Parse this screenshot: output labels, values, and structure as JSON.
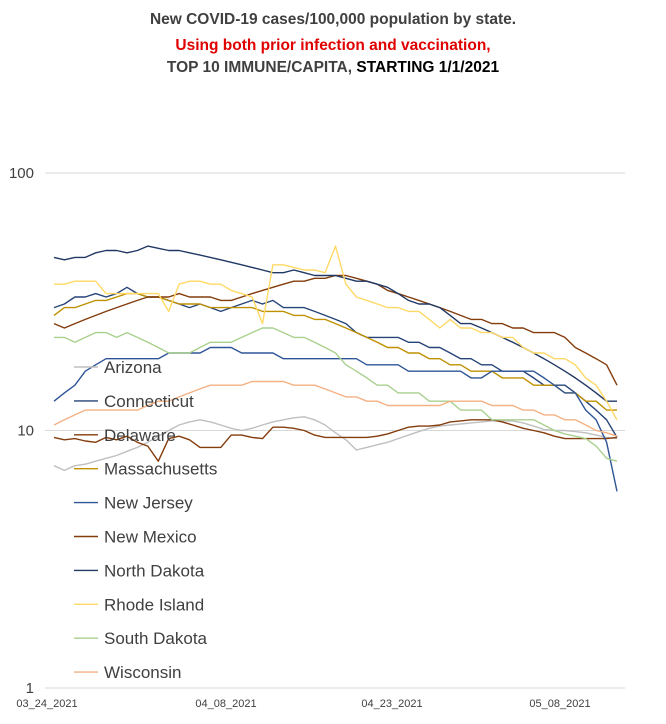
{
  "title": {
    "line1": "New COVID-19 cases/100,000 population by state.",
    "line2": "Using both prior infection and vaccination,",
    "line3_a": "TOP 10 IMMUNE/CAPITA, ",
    "line3_b": "STARTING 1/1/2021"
  },
  "chart_data": {
    "type": "line",
    "y_scale": "log",
    "ylim": [
      1,
      100
    ],
    "y_ticks": [
      "1",
      "10",
      "100"
    ],
    "x_tick_labels": [
      "03_24_2021",
      "04_08_2021",
      "04_23_2021",
      "05_08_2021"
    ],
    "x_range": [
      "03_24_2021",
      "05_20_2021"
    ],
    "grid": "horizontal",
    "legend_position": "left-inside",
    "series": [
      {
        "name": "Arizona",
        "color": "#bfbfbf",
        "values": [
          7.3,
          7.0,
          7.3,
          7.4,
          7.6,
          7.8,
          8.0,
          8.3,
          8.6,
          9.0,
          9.5,
          10.0,
          10.5,
          10.8,
          11.0,
          10.8,
          10.5,
          10.2,
          10.0,
          10.2,
          10.5,
          10.8,
          11.0,
          11.2,
          11.3,
          11.0,
          10.5,
          9.8,
          9.2,
          8.4,
          8.6,
          8.8,
          9.0,
          9.3,
          9.6,
          9.9,
          10.2,
          10.4,
          10.5,
          10.6,
          10.7,
          10.8,
          10.9,
          10.9,
          10.9,
          10.7,
          10.4,
          10.1,
          10.0,
          10.0,
          9.9,
          9.8,
          9.6,
          9.4,
          9.3
        ]
      },
      {
        "name": "Connecticut",
        "color": "#264478",
        "values": [
          30,
          31,
          33,
          33,
          34,
          33,
          34,
          36,
          34,
          33,
          33,
          32,
          31,
          30,
          31,
          30,
          29,
          30,
          31,
          32,
          31,
          32,
          30,
          30,
          30,
          29,
          28,
          27,
          26,
          24,
          23,
          23,
          23,
          23,
          22,
          22,
          21,
          21,
          20,
          19,
          19,
          18,
          18,
          17,
          17,
          17,
          16,
          15,
          15,
          15,
          14,
          13,
          12,
          11,
          9.4
        ]
      },
      {
        "name": "Delaware",
        "color": "#843c0c",
        "values": [
          9.4,
          9.2,
          9.3,
          9.1,
          9.0,
          9.4,
          9.2,
          9.5,
          9.0,
          8.7,
          7.6,
          9.3,
          9.5,
          9.2,
          8.6,
          8.6,
          8.6,
          9.6,
          9.6,
          9.4,
          9.3,
          10.3,
          10.3,
          10.2,
          10.0,
          9.6,
          9.4,
          9.4,
          9.4,
          9.4,
          9.4,
          9.5,
          9.7,
          10.0,
          10.3,
          10.4,
          10.4,
          10.5,
          10.8,
          10.9,
          11.0,
          11.0,
          11.0,
          10.8,
          10.5,
          10.2,
          10.0,
          9.8,
          9.5,
          9.3,
          9.3,
          9.3,
          9.3,
          9.3,
          9.4
        ]
      },
      {
        "name": "Massachusetts",
        "color": "#bf9000",
        "values": [
          28,
          30,
          30,
          31,
          32,
          32,
          33,
          34,
          34,
          33,
          33,
          32,
          31,
          31,
          31,
          30,
          30,
          30,
          30,
          30,
          29,
          29,
          29,
          28,
          28,
          27,
          27,
          26,
          25,
          24,
          23,
          22,
          21,
          21,
          20,
          20,
          19,
          19,
          18,
          18,
          17,
          17,
          17,
          16,
          16,
          16,
          15,
          15,
          15,
          14,
          14,
          13,
          13,
          12,
          12
        ]
      },
      {
        "name": "New Jersey",
        "color": "#2e5597",
        "values": [
          13,
          14,
          15,
          17,
          18,
          19,
          19,
          19,
          19,
          19,
          19,
          20,
          20,
          20,
          20,
          21,
          21,
          21,
          20,
          20,
          20,
          20,
          19,
          19,
          19,
          19,
          19,
          19,
          19,
          19,
          18,
          18,
          18,
          18,
          17,
          17,
          17,
          17,
          17,
          17,
          16,
          16,
          17,
          17,
          17,
          17,
          17,
          16,
          15,
          14,
          14,
          12,
          11,
          9.0,
          5.8
        ]
      },
      {
        "name": "New Mexico",
        "color": "#843c0c",
        "values": [
          26,
          25,
          26,
          27,
          28,
          29,
          30,
          31,
          32,
          33,
          33,
          33,
          34,
          33,
          33,
          33,
          32,
          32,
          33,
          34,
          35,
          36,
          37,
          38,
          38,
          39,
          39,
          40,
          40,
          39,
          38,
          37,
          35,
          34,
          33,
          32,
          31,
          30,
          29,
          28,
          27,
          27,
          26,
          26,
          25,
          25,
          24,
          24,
          24,
          23,
          21,
          20,
          19,
          18,
          15
        ]
      },
      {
        "name": "North Dakota",
        "color": "#203864",
        "values": [
          47,
          46,
          47,
          47,
          49,
          50,
          50,
          49,
          50,
          52,
          51,
          50,
          50,
          49,
          48,
          47,
          46,
          45,
          44,
          43,
          42,
          41,
          41,
          42,
          41,
          40,
          40,
          40,
          39,
          38,
          38,
          37,
          36,
          34,
          32,
          31,
          31,
          30,
          28,
          26,
          26,
          25,
          24,
          23,
          22,
          21,
          20,
          19,
          18,
          17,
          16,
          15,
          14,
          13,
          13
        ]
      },
      {
        "name": "Rhode Island",
        "color": "#ffd966",
        "values": [
          37,
          37,
          38,
          38,
          38,
          34,
          34,
          34,
          34,
          34,
          34,
          29,
          37,
          38,
          38,
          37,
          37,
          35,
          34,
          33,
          26,
          44,
          44,
          43,
          42,
          42,
          41,
          52,
          37,
          33,
          32,
          31,
          30,
          30,
          29,
          29,
          27,
          25,
          27,
          25,
          25,
          24,
          24,
          23,
          23,
          21,
          20,
          20,
          19,
          19,
          18,
          16,
          15,
          13,
          11
        ]
      },
      {
        "name": "South Dakota",
        "color": "#a9d18e",
        "values": [
          23,
          23,
          22,
          23,
          24,
          24,
          23,
          24,
          23,
          22,
          21,
          20,
          20,
          20,
          21,
          22,
          22,
          22,
          23,
          24,
          25,
          25,
          24,
          23,
          23,
          22,
          21,
          20,
          18,
          17,
          16,
          15,
          15,
          14,
          14,
          14,
          13,
          13,
          13,
          12,
          12,
          12,
          11,
          11,
          11,
          11,
          11,
          10.5,
          10,
          9.7,
          9.5,
          9.3,
          8.7,
          7.8,
          7.6
        ]
      },
      {
        "name": "Wisconsin",
        "color": "#f4b183",
        "values": [
          10.5,
          11,
          11.5,
          12,
          12,
          12,
          12,
          12,
          12,
          12.5,
          13,
          13,
          13.5,
          14,
          14.5,
          15,
          15,
          15,
          15,
          15.5,
          15.5,
          15.5,
          15.5,
          15,
          15,
          15,
          14.5,
          14,
          13.5,
          13.5,
          13,
          13,
          12.5,
          12.5,
          12.5,
          12.5,
          12.5,
          12.5,
          13,
          13,
          13,
          13,
          12.5,
          12.5,
          12.5,
          12,
          12,
          11.5,
          11.5,
          11,
          11,
          10.5,
          10,
          9.8,
          9.5
        ]
      }
    ]
  }
}
